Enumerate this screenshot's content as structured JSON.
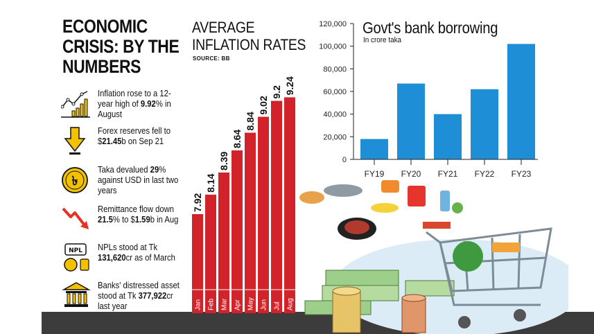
{
  "headline": {
    "line1": "ECONOMIC",
    "line2": "CRISIS: BY THE",
    "line3": "NUMBERS"
  },
  "facts": [
    {
      "icon": "rising-chart-icon",
      "pre": "Inflation rose to a 12-year high of ",
      "bold": "9.92",
      "post": "% in August"
    },
    {
      "icon": "down-arrow-dollar-icon",
      "pre": "Forex reserves fell to $",
      "bold": "21.45",
      "post": "b on Sep 21"
    },
    {
      "icon": "taka-coin-icon",
      "pre": "Taka devalued ",
      "bold": "29",
      "post": "% against USD in last two years"
    },
    {
      "icon": "falling-trend-icon",
      "pre": "Remittance flow down ",
      "bold": "21.5",
      "post": "% to $",
      "bold2": "1.59",
      "post2": "b in Aug"
    },
    {
      "icon": "npl-money-bag-icon",
      "pre": "NPLs stood at Tk ",
      "bold": "131,620",
      "post": "cr as of March"
    },
    {
      "icon": "bank-building-icon",
      "pre": "Banks' distressed asset stood at Tk ",
      "bold": "377,922",
      "post": "cr last year"
    }
  ],
  "npl_icon_label": "NPL",
  "chart_data": [
    {
      "type": "bar",
      "title_line1": "AVERAGE",
      "title_line2": "INFLATION RATES",
      "source": "SOURCE: BB",
      "categories": [
        "Jan",
        "Feb",
        "Mar",
        "Apr",
        "May",
        "Jun",
        "Jul",
        "Aug"
      ],
      "values": [
        7.92,
        8.14,
        8.39,
        8.64,
        8.84,
        9.02,
        9.2,
        9.24
      ],
      "value_labels": [
        "7.92",
        "8.14",
        "8.39",
        "8.64",
        "8.84",
        "9.02",
        "9.2",
        "9.24"
      ],
      "ylim": [
        6.8,
        9.4
      ],
      "color": "#d2232a"
    },
    {
      "type": "bar",
      "title": "Govt's bank borrowing",
      "subtitle": "In crore taka",
      "categories": [
        "FY19",
        "FY20",
        "FY21",
        "FY22",
        "FY23"
      ],
      "values": [
        18000,
        67000,
        40000,
        62000,
        102000
      ],
      "yticks": [
        "0",
        "20,000",
        "40,000",
        "60,000",
        "80,000",
        "100,000",
        "120,000"
      ],
      "tick_values": [
        0,
        20000,
        40000,
        60000,
        80000,
        100000,
        120000
      ],
      "ylim": [
        0,
        120000
      ],
      "color": "#1e8fd6"
    }
  ]
}
